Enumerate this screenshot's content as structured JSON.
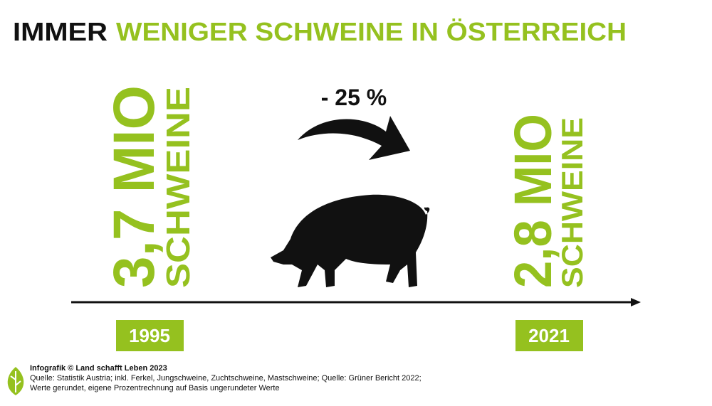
{
  "title": {
    "lead": "IMMER",
    "rest": "WENIGER SCHWEINE IN ÖSTERREICH"
  },
  "left": {
    "amount": "3,7 MIO",
    "unit": "SCHWEINE",
    "year": "1995"
  },
  "change": "- 25 %",
  "right": {
    "amount": "2,8 MIO",
    "unit": "SCHWEINE",
    "year": "2021"
  },
  "footer": {
    "credit": "Infografik © Land schafft Leben 2023",
    "lines": [
      "Quelle: Statistik Austria; inkl. Ferkel, Jungschweine, Zuchtschweine, Mastschweine; Quelle: Grüner Bericht 2022;",
      "Werte gerundet, eigene Prozentrechnung auf Basis ungerundeter Werte"
    ]
  }
}
